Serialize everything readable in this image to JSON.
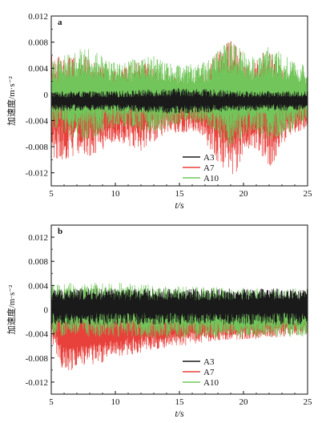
{
  "chart_data": [
    {
      "type": "line",
      "panel_label": "a",
      "ylabel": "加速度/m·s⁻²",
      "xlabel": "t/s",
      "xlim": [
        5,
        25
      ],
      "ylim": [
        -0.014,
        0.012
      ],
      "x_ticks": [
        "5",
        "10",
        "15",
        "20",
        "25"
      ],
      "y_ticks": [
        {
          "v": 0.012,
          "t": "0.012"
        },
        {
          "v": 0.008,
          "t": "0.008"
        },
        {
          "v": 0.004,
          "t": "0.004"
        },
        {
          "v": 0,
          "t": "0"
        },
        {
          "v": -0.004,
          "t": "-0.004"
        },
        {
          "v": -0.008,
          "t": "-0.008"
        },
        {
          "v": -0.012,
          "t": "-0.012"
        }
      ],
      "legend_position": "bottom-right",
      "series": [
        {
          "name": "A3",
          "color": "#1a1a1a",
          "envelope": [
            [
              5,
              0.0015
            ],
            [
              10,
              0.0015
            ],
            [
              15,
              0.002
            ],
            [
              20,
              0.0015
            ],
            [
              25,
              0.0015
            ]
          ],
          "offset": [
            [
              5,
              -0.001
            ],
            [
              25,
              -0.001
            ]
          ]
        },
        {
          "name": "A7",
          "color": "#e8413c",
          "envelope": [
            [
              5,
              0.008
            ],
            [
              7.5,
              0.008
            ],
            [
              10,
              0.0055
            ],
            [
              12,
              0.007
            ],
            [
              14,
              0.0045
            ],
            [
              16.5,
              0.004
            ],
            [
              19,
              0.0115
            ],
            [
              20.5,
              0.006
            ],
            [
              22,
              0.0095
            ],
            [
              23.5,
              0.0045
            ],
            [
              25,
              0.003
            ]
          ],
          "offset": [
            [
              5,
              -0.002
            ],
            [
              9,
              -0.002
            ],
            [
              14,
              -0.0015
            ],
            [
              19,
              -0.002
            ],
            [
              23,
              -0.002
            ],
            [
              25,
              -0.002
            ]
          ]
        },
        {
          "name": "A10",
          "color": "#72c55a",
          "envelope": [
            [
              5,
              0.005
            ],
            [
              7.5,
              0.0075
            ],
            [
              10,
              0.005
            ],
            [
              13,
              0.006
            ],
            [
              15,
              0.0045
            ],
            [
              17,
              0.005
            ],
            [
              19,
              0.0085
            ],
            [
              20.5,
              0.0055
            ],
            [
              22,
              0.0075
            ],
            [
              25,
              0.0045
            ]
          ],
          "offset": [
            [
              5,
              0.0
            ],
            [
              25,
              0.0
            ]
          ]
        }
      ]
    },
    {
      "type": "line",
      "panel_label": "b",
      "ylabel": "加速度/m·s⁻²",
      "xlabel": "t/s",
      "xlim": [
        5,
        25
      ],
      "ylim": [
        -0.014,
        0.014
      ],
      "x_ticks": [
        "5",
        "10",
        "15",
        "20",
        "25"
      ],
      "y_ticks": [
        {
          "v": 0.012,
          "t": "0.012"
        },
        {
          "v": 0.008,
          "t": "0.008"
        },
        {
          "v": 0.004,
          "t": "0.004"
        },
        {
          "v": 0,
          "t": "0"
        },
        {
          "v": -0.004,
          "t": "-0.004"
        },
        {
          "v": -0.008,
          "t": "-0.008"
        },
        {
          "v": -0.012,
          "t": "-0.012"
        }
      ],
      "legend_position": "bottom-right",
      "series": [
        {
          "name": "A3",
          "color": "#1a1a1a",
          "envelope": [
            [
              5,
              0.003
            ],
            [
              10,
              0.003
            ],
            [
              25,
              0.003
            ]
          ],
          "offset": [
            [
              5,
              0.0005
            ],
            [
              25,
              0.0005
            ]
          ]
        },
        {
          "name": "A7",
          "color": "#e8413c",
          "envelope": [
            [
              5,
              0.004
            ],
            [
              6,
              0.0065
            ],
            [
              8,
              0.0055
            ],
            [
              10,
              0.005
            ],
            [
              13,
              0.004
            ],
            [
              18,
              0.003
            ],
            [
              22,
              0.003
            ],
            [
              25,
              0.0025
            ]
          ],
          "offset": [
            [
              5,
              -0.0015
            ],
            [
              6,
              -0.004
            ],
            [
              8,
              -0.004
            ],
            [
              10,
              -0.003
            ],
            [
              15,
              -0.0025
            ],
            [
              20,
              -0.002
            ],
            [
              25,
              -0.0015
            ]
          ]
        },
        {
          "name": "A10",
          "color": "#72c55a",
          "envelope": [
            [
              5,
              0.0045
            ],
            [
              10,
              0.0045
            ],
            [
              25,
              0.004
            ]
          ],
          "offset": [
            [
              5,
              0.0
            ],
            [
              10,
              0.0
            ],
            [
              15,
              -0.0005
            ],
            [
              25,
              -0.0005
            ]
          ]
        }
      ]
    }
  ]
}
